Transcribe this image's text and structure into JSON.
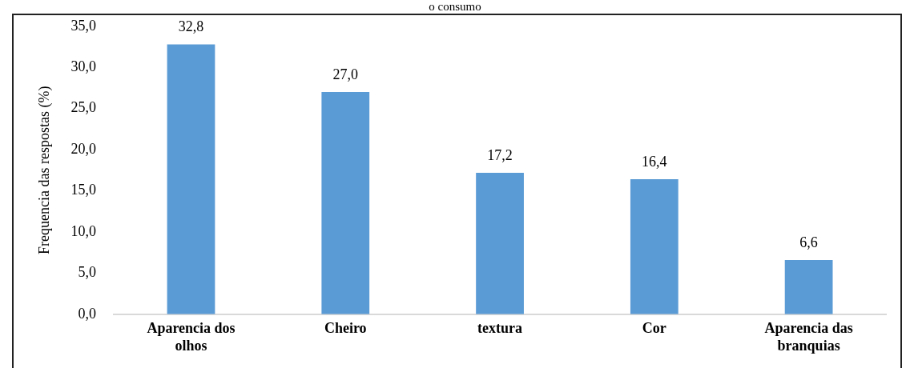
{
  "chart_data": {
    "type": "bar",
    "title": "o consumo",
    "ylabel": "Frequencia das respostas (%)",
    "categories": [
      "Aparencia dos olhos",
      "Cheiro",
      "textura",
      "Cor",
      "Aparencia das branquias"
    ],
    "values": [
      32.8,
      27.0,
      17.2,
      16.4,
      6.6
    ],
    "color": "#5b9bd5",
    "value_labels": [
      "32,8",
      "27,0",
      "17,2",
      "16,4",
      "6,6"
    ],
    "ylim": [
      0,
      35
    ],
    "yticks": [
      {
        "value": 0,
        "label": "0,0"
      },
      {
        "value": 5,
        "label": "5,0"
      },
      {
        "value": 10,
        "label": "10,0"
      },
      {
        "value": 15,
        "label": "15,0"
      },
      {
        "value": 20,
        "label": "20,0"
      },
      {
        "value": 25,
        "label": "25,0"
      },
      {
        "value": 30,
        "label": "30,0"
      },
      {
        "value": 35,
        "label": "35,0"
      }
    ],
    "grid": false,
    "legend": false
  }
}
